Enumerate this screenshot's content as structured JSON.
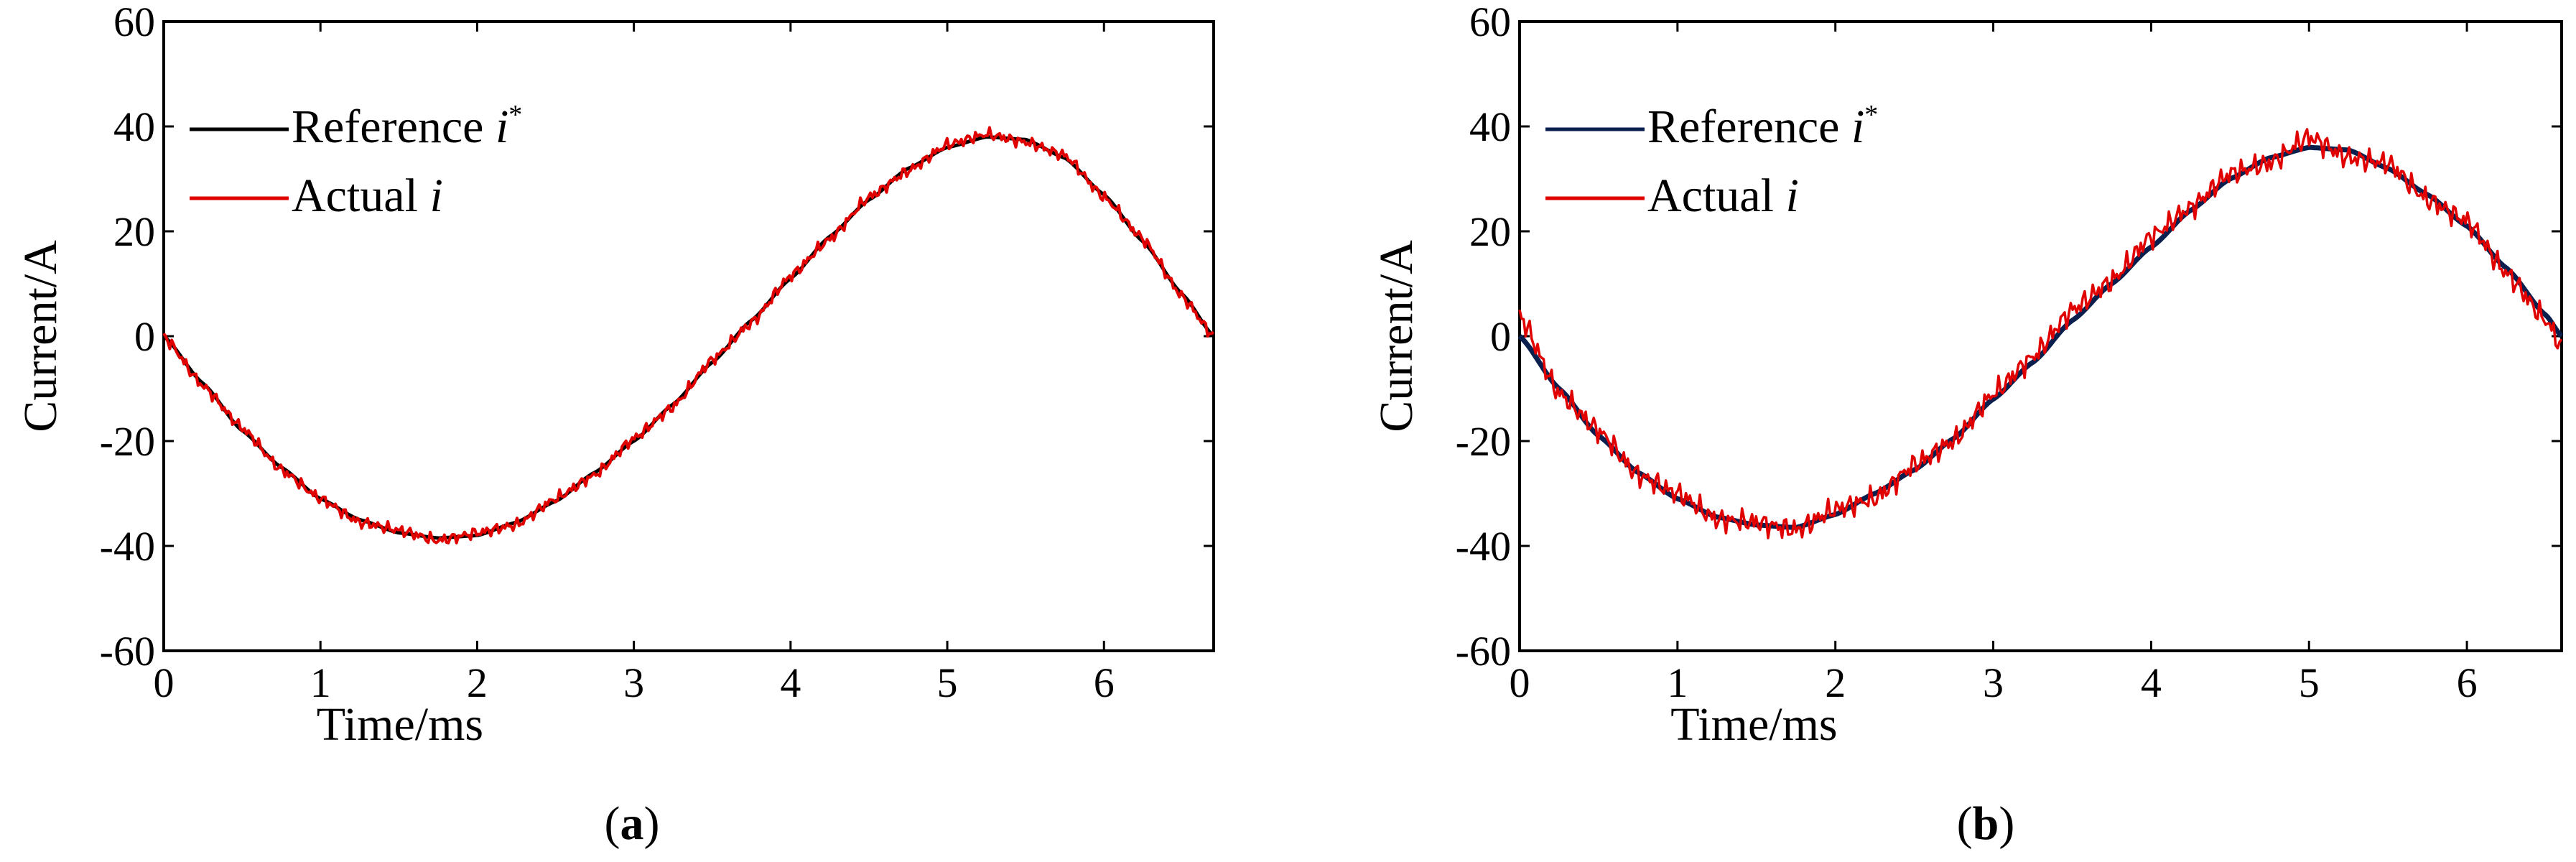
{
  "chart_data": [
    {
      "id": "a",
      "type": "line",
      "caption": "a",
      "xlabel": "Time/ms",
      "ylabel": "Current/A",
      "xlim": [
        0,
        6.7
      ],
      "ylim": [
        -60,
        60
      ],
      "xticks": [
        "0",
        "1",
        "2",
        "3",
        "4",
        "5",
        "6"
      ],
      "yticks": [
        "60",
        "40",
        "20",
        "0",
        "-20",
        "-40",
        "-60"
      ],
      "legend": [
        {
          "name": "Reference",
          "symbol": "i",
          "sup": "*",
          "color": "#000000"
        },
        {
          "name": "Actual",
          "symbol": "i",
          "sup": "",
          "color": "#e00000"
        }
      ],
      "series": [
        {
          "name": "Reference i*",
          "color": "#000000",
          "x": [
            0,
            0.25,
            0.5,
            0.75,
            1.0,
            1.25,
            1.5,
            1.75,
            2.0,
            2.25,
            2.5,
            2.75,
            3.0,
            3.25,
            3.5,
            3.75,
            4.0,
            4.25,
            4.5,
            4.75,
            5.0,
            5.25,
            5.5,
            5.75,
            6.0,
            6.25,
            6.5,
            6.7
          ],
          "y": [
            0,
            -9,
            -18,
            -25,
            -31,
            -35,
            -37.5,
            -38.5,
            -38,
            -35.5,
            -31.5,
            -26,
            -20,
            -13,
            -5,
            3,
            11,
            19,
            26,
            32,
            36,
            38,
            37.5,
            34,
            27,
            18,
            8,
            0
          ]
        },
        {
          "name": "Actual i",
          "color": "#e00000",
          "x": [
            0,
            0.25,
            0.5,
            0.75,
            1.0,
            1.25,
            1.5,
            1.75,
            2.0,
            2.25,
            2.5,
            2.75,
            3.0,
            3.25,
            3.5,
            3.75,
            4.0,
            4.25,
            4.5,
            4.75,
            5.0,
            5.25,
            5.5,
            5.75,
            6.0,
            6.25,
            6.5,
            6.7
          ],
          "y": [
            0,
            -9.5,
            -17.5,
            -25.5,
            -31,
            -35.5,
            -37,
            -39,
            -37.5,
            -36,
            -31,
            -26.5,
            -19.5,
            -13.5,
            -4.5,
            2.5,
            11.5,
            18.5,
            26.5,
            31.5,
            36.5,
            38.5,
            37,
            34.5,
            26.5,
            18.5,
            7.5,
            0
          ]
        }
      ]
    },
    {
      "id": "b",
      "type": "line",
      "caption": "b",
      "xlabel": "Time/ms",
      "ylabel": "Current/A",
      "xlim": [
        0,
        6.6
      ],
      "ylim": [
        -60,
        60
      ],
      "xticks": [
        "0",
        "1",
        "2",
        "3",
        "4",
        "5",
        "6"
      ],
      "yticks": [
        "60",
        "40",
        "20",
        "0",
        "-20",
        "-40",
        "-60"
      ],
      "legend": [
        {
          "name": "Reference",
          "symbol": "i",
          "sup": "*",
          "color": "#0b1f4e"
        },
        {
          "name": "Actual",
          "symbol": "i",
          "sup": "",
          "color": "#e00000"
        }
      ],
      "series": [
        {
          "name": "Reference i*",
          "color": "#0b1f4e",
          "x": [
            0,
            0.25,
            0.5,
            0.75,
            1.0,
            1.25,
            1.5,
            1.75,
            2.0,
            2.25,
            2.5,
            2.75,
            3.0,
            3.25,
            3.5,
            3.75,
            4.0,
            4.25,
            4.5,
            4.75,
            5.0,
            5.25,
            5.5,
            5.75,
            6.0,
            6.25,
            6.5,
            6.6
          ],
          "y": [
            0,
            -10,
            -19,
            -26,
            -31,
            -34.5,
            -36,
            -36.5,
            -34,
            -30,
            -25.5,
            -19.5,
            -12,
            -5,
            3,
            10,
            17,
            24,
            30,
            34,
            36,
            35.5,
            32,
            27,
            21,
            13,
            4,
            0
          ]
        },
        {
          "name": "Actual i",
          "color": "#e00000",
          "x": [
            0,
            0.25,
            0.5,
            0.75,
            1.0,
            1.25,
            1.5,
            1.75,
            2.0,
            2.25,
            2.5,
            2.75,
            3.0,
            3.25,
            3.5,
            3.75,
            4.0,
            4.25,
            4.5,
            4.75,
            5.0,
            5.25,
            5.5,
            5.75,
            6.0,
            6.25,
            6.5,
            6.6
          ],
          "y": [
            4,
            -11,
            -18,
            -26.5,
            -30,
            -35,
            -35.5,
            -37,
            -33,
            -31,
            -24.5,
            -20,
            -11,
            -4,
            5,
            10.5,
            19,
            24.5,
            31,
            33,
            38,
            34,
            33,
            26,
            22,
            12,
            3,
            -2
          ]
        }
      ]
    }
  ]
}
